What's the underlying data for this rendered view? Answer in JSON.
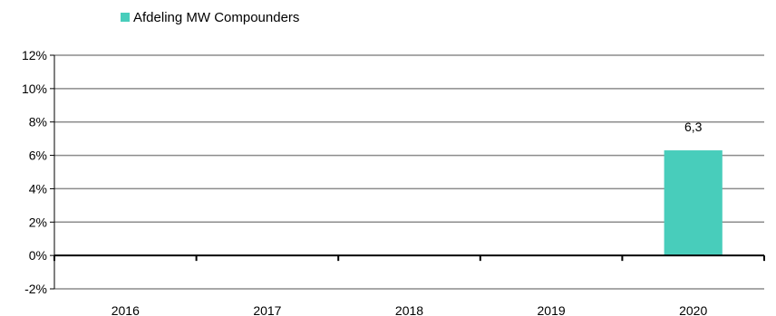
{
  "chart_data": {
    "type": "bar",
    "categories": [
      "2016",
      "2017",
      "2018",
      "2019",
      "2020"
    ],
    "series": [
      {
        "name": "Afdeling MW Compounders",
        "values": [
          null,
          null,
          null,
          null,
          6.3
        ],
        "data_labels": [
          "",
          "",
          "",
          "",
          "6,3"
        ]
      }
    ],
    "y_ticks": [
      "12%",
      "10%",
      "8%",
      "6%",
      "4%",
      "2%",
      "0%",
      "-2%"
    ],
    "ylim": [
      -2,
      12
    ],
    "ytick_step": 2,
    "grid": true,
    "legend_position": "top-left",
    "colors": {
      "bar": "#48CDBB",
      "grid": "#8C8C8C",
      "axis": "#000000"
    }
  }
}
